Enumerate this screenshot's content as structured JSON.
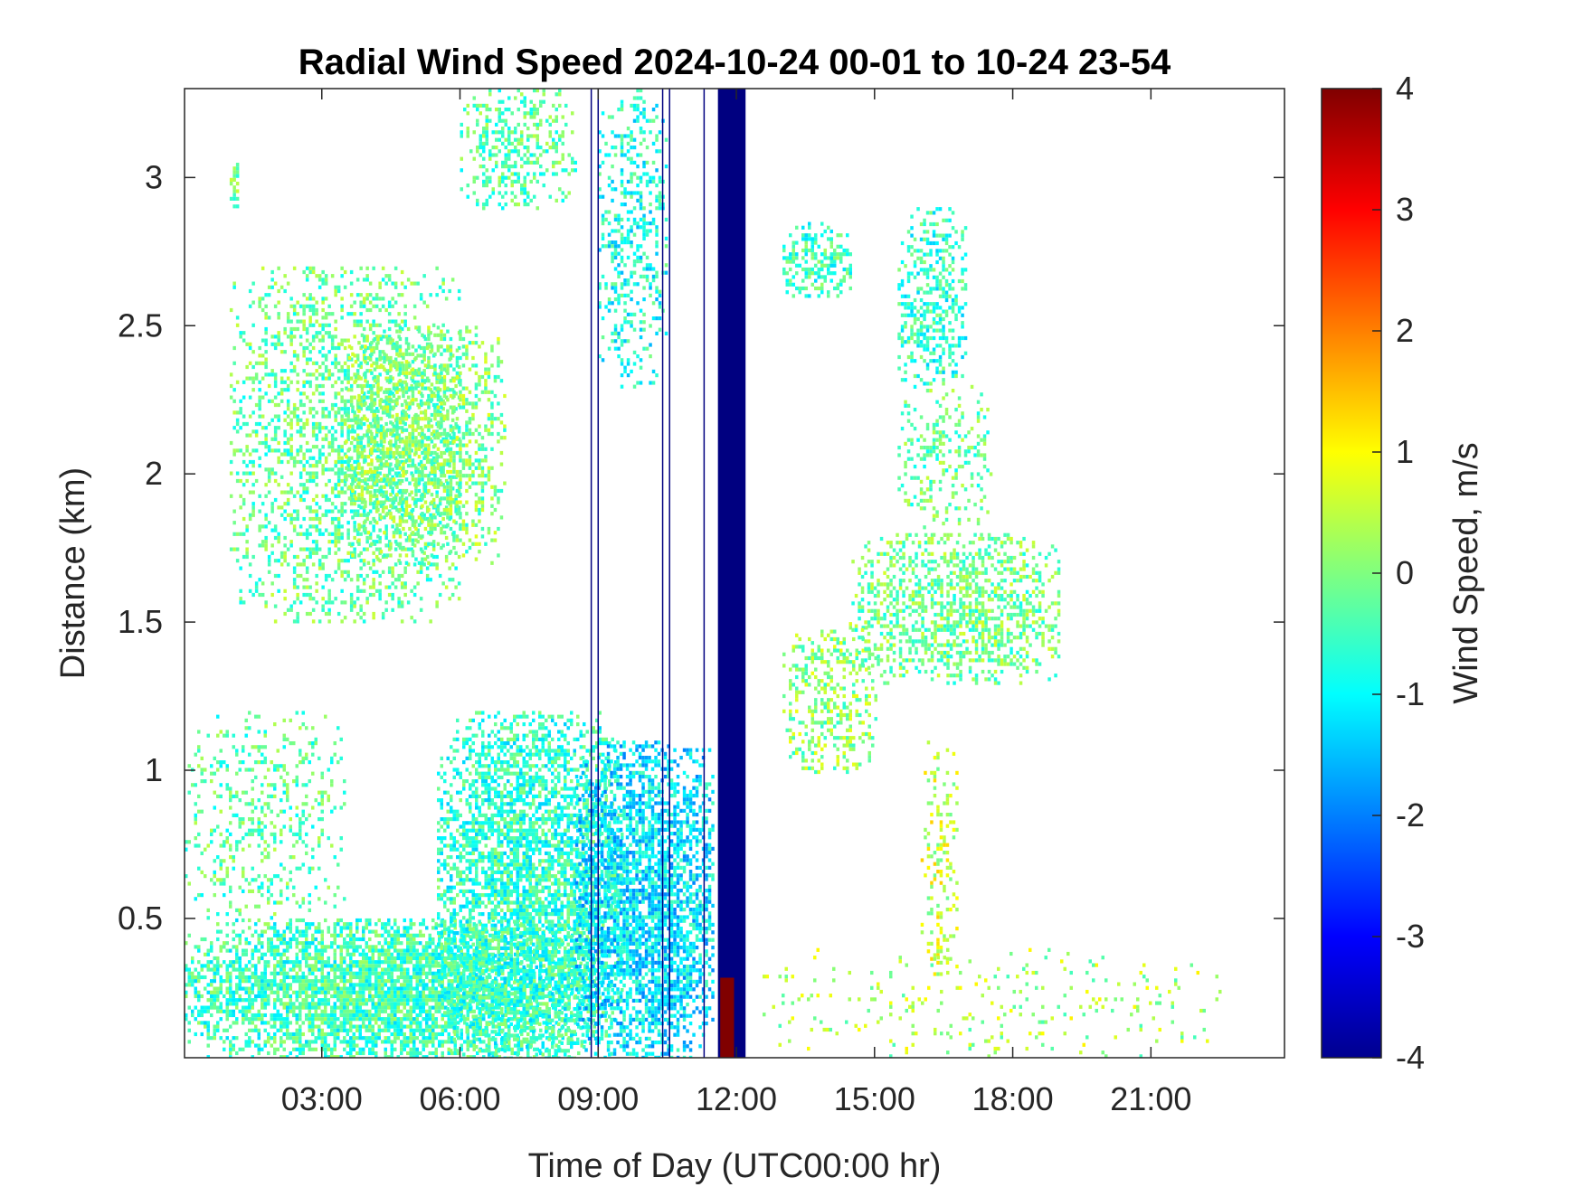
{
  "chart_data": {
    "type": "heatmap",
    "title": "Radial Wind Speed 2024-10-24 00-01 to 10-24 23-54",
    "xlabel": "Time of Day (UTC00:00 hr)",
    "ylabel": "Distance (km)",
    "colorbar_label": "Wind Speed, m/s",
    "x_range_hours": [
      0.02,
      23.9
    ],
    "y_range_km": [
      0.03,
      3.3
    ],
    "color_range_ms": [
      -4,
      4
    ],
    "colormap": "jet",
    "x_ticks": [
      {
        "value": 3,
        "label": "03:00"
      },
      {
        "value": 6,
        "label": "06:00"
      },
      {
        "value": 9,
        "label": "09:00"
      },
      {
        "value": 12,
        "label": "12:00"
      },
      {
        "value": 15,
        "label": "15:00"
      },
      {
        "value": 18,
        "label": "18:00"
      },
      {
        "value": 21,
        "label": "21:00"
      }
    ],
    "y_ticks": [
      {
        "value": 0.5,
        "label": "0.5"
      },
      {
        "value": 1,
        "label": "1"
      },
      {
        "value": 1.5,
        "label": "1.5"
      },
      {
        "value": 2,
        "label": "2"
      },
      {
        "value": 2.5,
        "label": "2.5"
      },
      {
        "value": 3,
        "label": "3"
      }
    ],
    "colorbar_ticks": [
      {
        "value": 4,
        "label": "4"
      },
      {
        "value": 3,
        "label": "3"
      },
      {
        "value": 2,
        "label": "2"
      },
      {
        "value": 1,
        "label": "1"
      },
      {
        "value": 0,
        "label": "0"
      },
      {
        "value": -1,
        "label": "-1"
      },
      {
        "value": -2,
        "label": "-2"
      },
      {
        "value": -3,
        "label": "-3"
      },
      {
        "value": -4,
        "label": "-4"
      }
    ],
    "echo_regions": [
      {
        "t": [
          0.02,
          9.0
        ],
        "d": [
          0.03,
          0.5
        ],
        "v": -0.5,
        "density": 0.9
      },
      {
        "t": [
          0.02,
          3.5
        ],
        "d": [
          0.5,
          1.2
        ],
        "v": -0.3,
        "density": 0.25
      },
      {
        "t": [
          1.0,
          6.0
        ],
        "d": [
          1.5,
          2.7
        ],
        "v": -0.2,
        "density": 0.45
      },
      {
        "t": [
          3.5,
          7.0
        ],
        "d": [
          1.7,
          2.5
        ],
        "v": 0.0,
        "density": 0.55
      },
      {
        "t": [
          5.5,
          9.5
        ],
        "d": [
          0.03,
          1.2
        ],
        "v": -0.6,
        "density": 0.75
      },
      {
        "t": [
          8.5,
          11.5
        ],
        "d": [
          0.03,
          1.1
        ],
        "v": -1.2,
        "density": 0.8
      },
      {
        "t": [
          6.0,
          8.5
        ],
        "d": [
          2.9,
          3.3
        ],
        "v": -0.3,
        "density": 0.45
      },
      {
        "t": [
          9.0,
          10.5
        ],
        "d": [
          2.3,
          3.3
        ],
        "v": -0.8,
        "density": 0.35
      },
      {
        "t": [
          1.0,
          1.2
        ],
        "d": [
          2.9,
          3.05
        ],
        "v": -0.2,
        "density": 0.7
      },
      {
        "t": [
          13.0,
          14.5
        ],
        "d": [
          2.6,
          2.85
        ],
        "v": -0.5,
        "density": 0.6
      },
      {
        "t": [
          15.5,
          17.0
        ],
        "d": [
          2.3,
          2.9
        ],
        "v": -0.6,
        "density": 0.5
      },
      {
        "t": [
          13.0,
          15.0
        ],
        "d": [
          1.0,
          1.5
        ],
        "v": 0.1,
        "density": 0.45
      },
      {
        "t": [
          14.5,
          19.0
        ],
        "d": [
          1.3,
          1.8
        ],
        "v": -0.1,
        "density": 0.55
      },
      {
        "t": [
          15.5,
          17.5
        ],
        "d": [
          1.8,
          2.3
        ],
        "v": -0.2,
        "density": 0.3
      },
      {
        "t": [
          16.0,
          16.8
        ],
        "d": [
          0.3,
          1.1
        ],
        "v": 0.6,
        "density": 0.3
      },
      {
        "t": [
          12.5,
          22.5
        ],
        "d": [
          0.03,
          0.4
        ],
        "v": 0.3,
        "density": 0.08
      }
    ],
    "strong_band": {
      "t": [
        11.6,
        12.2
      ],
      "d": [
        0.03,
        3.3
      ],
      "v": -4.0,
      "positive_core_t": [
        11.65,
        11.95
      ],
      "positive_core_d": [
        0.03,
        0.3
      ],
      "positive_core_v": 4.0
    },
    "vertical_lines": [
      8.85,
      9.0,
      10.4,
      10.55,
      11.3
    ]
  }
}
